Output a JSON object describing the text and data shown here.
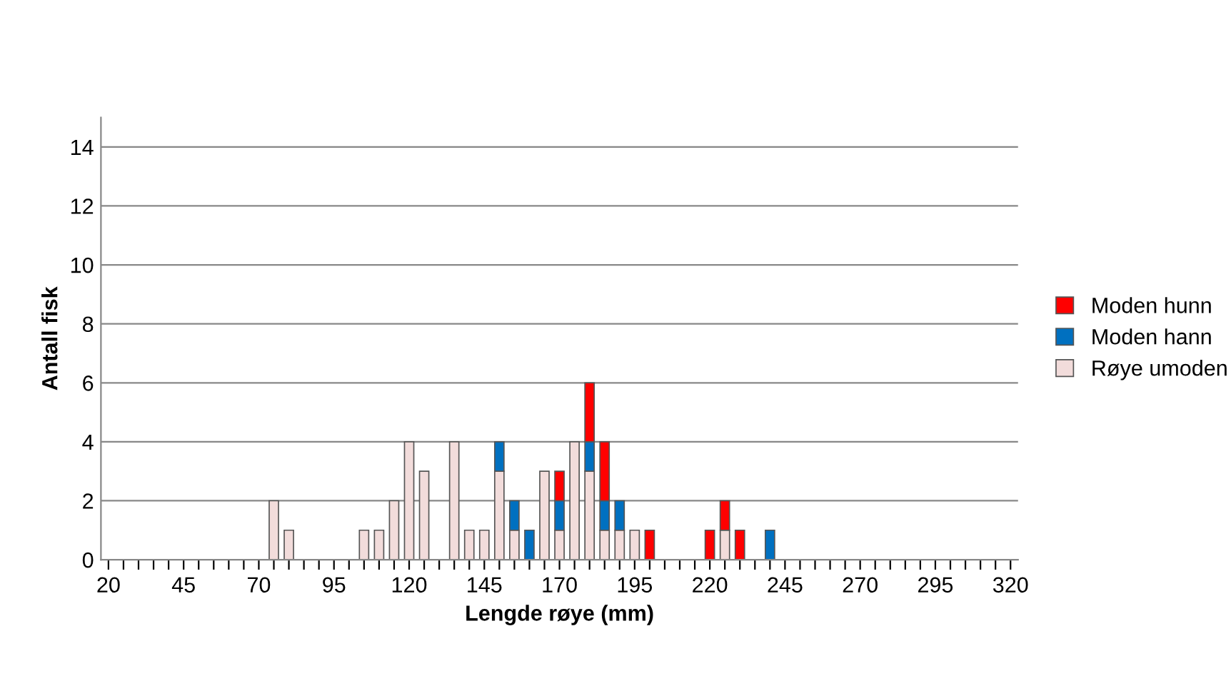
{
  "chart_data": {
    "type": "bar",
    "stacked": true,
    "xlabel": "Lengde røye (mm)",
    "ylabel": "Antall fisk",
    "categories": [
      "20",
      null,
      null,
      null,
      null,
      "45",
      null,
      null,
      null,
      null,
      "70",
      null,
      null,
      null,
      null,
      "95",
      null,
      null,
      null,
      null,
      "120",
      null,
      null,
      null,
      null,
      "145",
      null,
      null,
      null,
      null,
      "170",
      null,
      null,
      null,
      null,
      "195",
      null,
      null,
      null,
      null,
      "220",
      null,
      null,
      null,
      null,
      "245",
      null,
      null,
      null,
      null,
      "270",
      null,
      null,
      null,
      null,
      "295",
      null,
      null,
      null,
      null,
      "320"
    ],
    "series": [
      {
        "name": "Røye umoden",
        "color": "#f2dcdb",
        "values": [
          null,
          null,
          null,
          null,
          null,
          null,
          null,
          null,
          null,
          null,
          null,
          2,
          1,
          null,
          null,
          null,
          null,
          1,
          1,
          2,
          4,
          3,
          null,
          4,
          1,
          1,
          3,
          1,
          null,
          3,
          1,
          4,
          3,
          1,
          1,
          1,
          null,
          null,
          null,
          null,
          null,
          1,
          null,
          null,
          null,
          null,
          null,
          null,
          null,
          null,
          null,
          null,
          null,
          null,
          null,
          null,
          null,
          null,
          null,
          null,
          null
        ]
      },
      {
        "name": "Moden hann",
        "color": "#0070c0",
        "values": [
          null,
          null,
          null,
          null,
          null,
          null,
          null,
          null,
          null,
          null,
          null,
          null,
          null,
          null,
          null,
          null,
          null,
          null,
          null,
          null,
          null,
          null,
          null,
          null,
          null,
          null,
          1,
          1,
          1,
          null,
          1,
          null,
          1,
          1,
          1,
          null,
          null,
          null,
          null,
          null,
          null,
          null,
          null,
          null,
          1,
          null,
          null,
          null,
          null,
          null,
          null,
          null,
          null,
          null,
          null,
          null,
          null,
          null,
          null,
          null,
          null
        ]
      },
      {
        "name": "Moden hunn",
        "color": "#ff0000",
        "values": [
          null,
          null,
          null,
          null,
          null,
          null,
          null,
          null,
          null,
          null,
          null,
          null,
          null,
          null,
          null,
          null,
          null,
          null,
          null,
          null,
          null,
          null,
          null,
          null,
          null,
          null,
          null,
          null,
          null,
          null,
          1,
          null,
          2,
          2,
          null,
          null,
          1,
          null,
          null,
          null,
          1,
          1,
          1,
          null,
          null,
          null,
          null,
          null,
          null,
          null,
          null,
          null,
          null,
          null,
          null,
          null,
          null,
          null,
          null,
          null,
          null
        ]
      }
    ],
    "ylim": [
      0,
      15
    ],
    "yticks": [
      0,
      2,
      4,
      6,
      8,
      10,
      12,
      14
    ],
    "grid": "y",
    "legend": "right"
  }
}
